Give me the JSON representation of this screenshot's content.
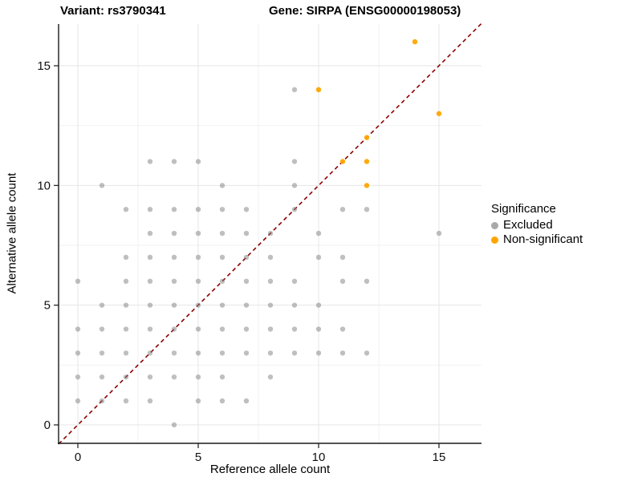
{
  "figure": {
    "title_left": "Variant: rs3790341",
    "title_right": "Gene: SIRPA (ENSG00000198053)"
  },
  "axes": {
    "x_label": "Reference allele count",
    "y_label": "Alternative allele count"
  },
  "legend": {
    "title": "Significance",
    "items": [
      {
        "label": "Excluded",
        "color": "#a9a9a9"
      },
      {
        "label": "Non-significant",
        "color": "#ffa500"
      }
    ]
  },
  "chart_data": {
    "type": "scatter",
    "title": "Variant: rs3790341 / Gene: SIRPA (ENSG00000198053)",
    "xlabel": "Reference allele count",
    "ylabel": "Alternative allele count",
    "x_ticks": [
      0,
      5,
      10,
      15
    ],
    "y_ticks": [
      0,
      5,
      10,
      15
    ],
    "minor_grid": [
      2.5,
      7.5,
      12.5
    ],
    "xlim": [
      -0.8,
      16.8
    ],
    "ylim": [
      -0.8,
      16.75
    ],
    "grid": "on",
    "legend_position": "right",
    "reference_line": {
      "equation": "y = x",
      "style": "dashed",
      "color": "#8b0000"
    },
    "series": [
      {
        "name": "Excluded",
        "color": "#808080",
        "opacity": 0.5,
        "points": [
          [
            0,
            1
          ],
          [
            0,
            2
          ],
          [
            0,
            3
          ],
          [
            0,
            4
          ],
          [
            0,
            6
          ],
          [
            1,
            1
          ],
          [
            1,
            2
          ],
          [
            1,
            3
          ],
          [
            1,
            4
          ],
          [
            1,
            5
          ],
          [
            1,
            10
          ],
          [
            2,
            1
          ],
          [
            2,
            2
          ],
          [
            2,
            3
          ],
          [
            2,
            4
          ],
          [
            2,
            5
          ],
          [
            2,
            6
          ],
          [
            2,
            7
          ],
          [
            2,
            9
          ],
          [
            3,
            1
          ],
          [
            3,
            2
          ],
          [
            3,
            3
          ],
          [
            3,
            4
          ],
          [
            3,
            5
          ],
          [
            3,
            6
          ],
          [
            3,
            7
          ],
          [
            3,
            8
          ],
          [
            3,
            9
          ],
          [
            3,
            11
          ],
          [
            4,
            0
          ],
          [
            4,
            2
          ],
          [
            4,
            3
          ],
          [
            4,
            4
          ],
          [
            4,
            5
          ],
          [
            4,
            6
          ],
          [
            4,
            7
          ],
          [
            4,
            8
          ],
          [
            4,
            9
          ],
          [
            4,
            11
          ],
          [
            5,
            1
          ],
          [
            5,
            2
          ],
          [
            5,
            3
          ],
          [
            5,
            4
          ],
          [
            5,
            5
          ],
          [
            5,
            6
          ],
          [
            5,
            7
          ],
          [
            5,
            8
          ],
          [
            5,
            9
          ],
          [
            5,
            11
          ],
          [
            6,
            1
          ],
          [
            6,
            2
          ],
          [
            6,
            3
          ],
          [
            6,
            4
          ],
          [
            6,
            5
          ],
          [
            6,
            6
          ],
          [
            6,
            7
          ],
          [
            6,
            8
          ],
          [
            6,
            9
          ],
          [
            6,
            10
          ],
          [
            7,
            1
          ],
          [
            7,
            3
          ],
          [
            7,
            4
          ],
          [
            7,
            5
          ],
          [
            7,
            6
          ],
          [
            7,
            7
          ],
          [
            7,
            8
          ],
          [
            7,
            9
          ],
          [
            8,
            2
          ],
          [
            8,
            3
          ],
          [
            8,
            4
          ],
          [
            8,
            5
          ],
          [
            8,
            6
          ],
          [
            8,
            7
          ],
          [
            8,
            8
          ],
          [
            9,
            3
          ],
          [
            9,
            4
          ],
          [
            9,
            5
          ],
          [
            9,
            6
          ],
          [
            9,
            9
          ],
          [
            9,
            10
          ],
          [
            9,
            11
          ],
          [
            9,
            14
          ],
          [
            10,
            3
          ],
          [
            10,
            4
          ],
          [
            10,
            5
          ],
          [
            10,
            7
          ],
          [
            10,
            8
          ],
          [
            11,
            3
          ],
          [
            11,
            4
          ],
          [
            11,
            6
          ],
          [
            11,
            7
          ],
          [
            11,
            9
          ],
          [
            12,
            3
          ],
          [
            12,
            6
          ],
          [
            12,
            9
          ],
          [
            15,
            8
          ]
        ]
      },
      {
        "name": "Non-significant",
        "color": "#ffa500",
        "opacity": 0.95,
        "points": [
          [
            10,
            14
          ],
          [
            11,
            11
          ],
          [
            12,
            10
          ],
          [
            12,
            11
          ],
          [
            12,
            12
          ],
          [
            14,
            16
          ],
          [
            15,
            13
          ]
        ]
      }
    ]
  }
}
